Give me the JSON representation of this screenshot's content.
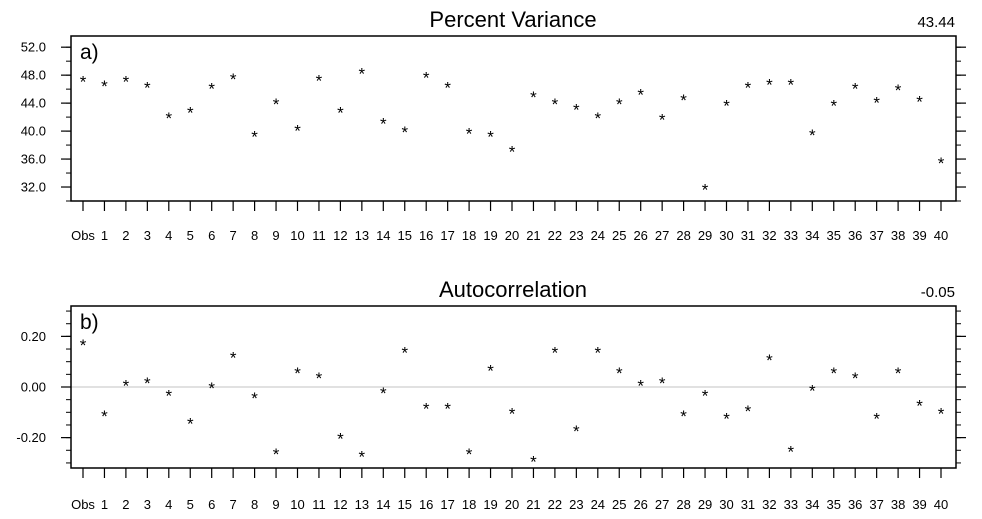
{
  "chart_data": [
    {
      "type": "scatter",
      "panel_label": "a)",
      "title": "Percent Variance",
      "corner_value": "43.44",
      "categories": [
        "Obs",
        "1",
        "2",
        "3",
        "4",
        "5",
        "6",
        "7",
        "8",
        "9",
        "10",
        "11",
        "12",
        "13",
        "14",
        "15",
        "16",
        "17",
        "18",
        "19",
        "20",
        "21",
        "22",
        "23",
        "24",
        "25",
        "26",
        "27",
        "28",
        "29",
        "30",
        "31",
        "32",
        "33",
        "34",
        "35",
        "36",
        "37",
        "38",
        "39",
        "40"
      ],
      "values": [
        47.2,
        46.6,
        47.2,
        46.4,
        42.0,
        42.8,
        46.2,
        47.6,
        39.4,
        44.0,
        40.2,
        47.4,
        42.8,
        48.4,
        41.2,
        40.0,
        47.8,
        46.4,
        39.8,
        39.4,
        37.2,
        45.0,
        44.0,
        43.2,
        42.0,
        44.0,
        45.4,
        41.8,
        44.6,
        31.8,
        43.8,
        46.4,
        46.8,
        46.8,
        39.6,
        43.8,
        46.2,
        44.2,
        46.0,
        44.4,
        35.6
      ],
      "ylim": [
        30.0,
        53.6
      ],
      "yticks": [
        "32.0",
        "36.0",
        "40.0",
        "44.0",
        "48.0",
        "52.0"
      ],
      "marker": "*"
    },
    {
      "type": "scatter",
      "panel_label": "b)",
      "title": "Autocorrelation",
      "corner_value": "-0.05",
      "categories": [
        "Obs",
        "1",
        "2",
        "3",
        "4",
        "5",
        "6",
        "7",
        "8",
        "9",
        "10",
        "11",
        "12",
        "13",
        "14",
        "15",
        "16",
        "17",
        "18",
        "19",
        "20",
        "21",
        "22",
        "23",
        "24",
        "25",
        "26",
        "27",
        "28",
        "29",
        "30",
        "31",
        "32",
        "33",
        "34",
        "35",
        "36",
        "37",
        "38",
        "39",
        "40"
      ],
      "values": [
        0.17,
        -0.11,
        0.01,
        0.02,
        -0.03,
        -0.14,
        0.0,
        0.12,
        -0.04,
        -0.26,
        0.06,
        0.04,
        -0.2,
        -0.27,
        -0.02,
        0.14,
        -0.08,
        -0.08,
        -0.26,
        0.07,
        -0.1,
        -0.29,
        0.14,
        -0.17,
        0.14,
        0.06,
        0.01,
        0.02,
        -0.11,
        -0.03,
        -0.12,
        -0.09,
        0.11,
        -0.25,
        -0.01,
        0.06,
        0.04,
        -0.12,
        0.06,
        -0.07,
        -0.1
      ],
      "ylim": [
        -0.32,
        0.32
      ],
      "yticks": [
        "-0.20",
        "0.00",
        "0.20"
      ],
      "reference_line": 0.0,
      "marker": "*"
    }
  ]
}
